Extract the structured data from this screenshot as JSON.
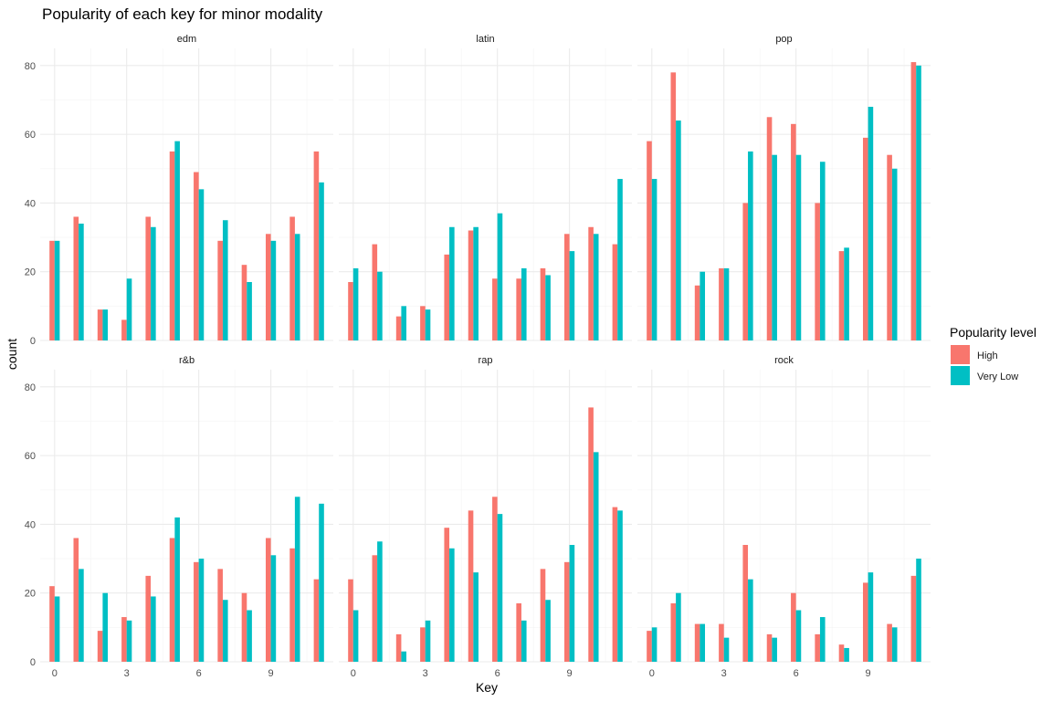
{
  "chart_data": {
    "type": "bar",
    "title": "Popularity of each key for minor modality",
    "xlabel": "Key",
    "ylabel": "count",
    "x": [
      0,
      1,
      2,
      3,
      4,
      5,
      6,
      7,
      8,
      9,
      10,
      11
    ],
    "x_ticks": [
      "0",
      "3",
      "6",
      "9"
    ],
    "ylim": [
      0,
      85
    ],
    "y_ticks": [
      "0",
      "20",
      "40",
      "60",
      "80"
    ],
    "grid": true,
    "legend": {
      "title": "Popularity level",
      "position": "right",
      "entries": [
        {
          "label": "High",
          "color": "#F8766D"
        },
        {
          "label": "Very Low",
          "color": "#00BFC4"
        }
      ]
    },
    "facets": [
      {
        "name": "edm",
        "series": [
          {
            "name": "High",
            "values": [
              29,
              36,
              9,
              6,
              36,
              55,
              49,
              29,
              22,
              31,
              36,
              55
            ]
          },
          {
            "name": "Very Low",
            "values": [
              29,
              34,
              9,
              18,
              33,
              58,
              44,
              35,
              17,
              29,
              31,
              46
            ]
          }
        ]
      },
      {
        "name": "latin",
        "series": [
          {
            "name": "High",
            "values": [
              17,
              28,
              7,
              10,
              25,
              32,
              18,
              18,
              21,
              31,
              33,
              28
            ]
          },
          {
            "name": "Very Low",
            "values": [
              21,
              20,
              10,
              9,
              33,
              33,
              37,
              21,
              19,
              26,
              31,
              47
            ]
          }
        ]
      },
      {
        "name": "pop",
        "series": [
          {
            "name": "High",
            "values": [
              58,
              78,
              16,
              21,
              40,
              65,
              63,
              40,
              26,
              59,
              54,
              81
            ]
          },
          {
            "name": "Very Low",
            "values": [
              47,
              64,
              20,
              21,
              55,
              54,
              54,
              52,
              27,
              68,
              50,
              80
            ]
          }
        ]
      },
      {
        "name": "r&b",
        "series": [
          {
            "name": "High",
            "values": [
              22,
              36,
              9,
              13,
              25,
              36,
              29,
              27,
              20,
              36,
              33,
              24
            ]
          },
          {
            "name": "Very Low",
            "values": [
              19,
              27,
              20,
              12,
              19,
              42,
              30,
              18,
              15,
              31,
              48,
              46
            ]
          }
        ]
      },
      {
        "name": "rap",
        "series": [
          {
            "name": "High",
            "values": [
              24,
              31,
              8,
              10,
              39,
              44,
              48,
              17,
              27,
              29,
              74,
              45
            ]
          },
          {
            "name": "Very Low",
            "values": [
              15,
              35,
              3,
              12,
              33,
              26,
              43,
              12,
              18,
              34,
              61,
              44
            ]
          }
        ]
      },
      {
        "name": "rock",
        "series": [
          {
            "name": "High",
            "values": [
              9,
              17,
              11,
              11,
              34,
              8,
              20,
              8,
              5,
              23,
              11,
              25
            ]
          },
          {
            "name": "Very Low",
            "values": [
              10,
              20,
              11,
              7,
              24,
              7,
              15,
              13,
              4,
              26,
              10,
              30
            ]
          }
        ]
      }
    ]
  }
}
